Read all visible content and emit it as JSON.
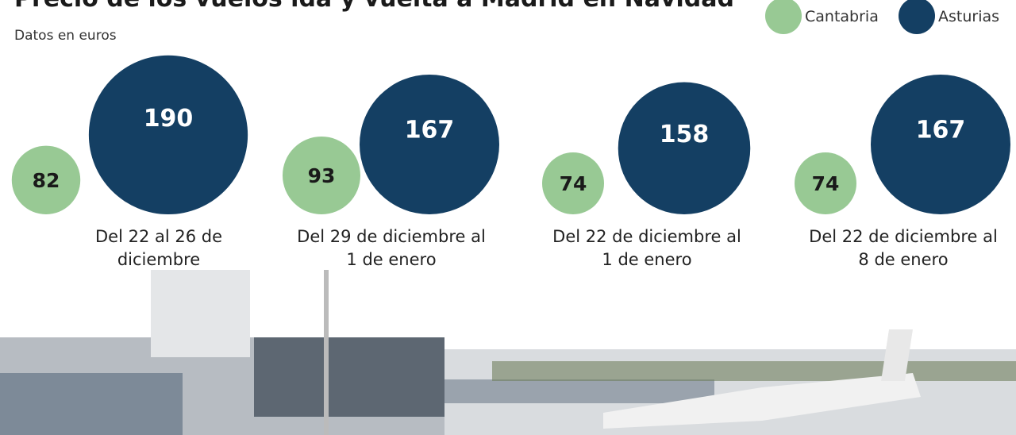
{
  "chart_data": {
    "type": "bubble",
    "title": "Precio de los vuelos ida y vuelta a Madrid en Navidad",
    "subtitle": "Datos en euros",
    "categories": [
      "Del 22 al 26 de diciembre",
      "Del 29 de diciembre al 1 de enero",
      "Del 22 de diciembre al 1 de enero",
      "Del 22 de diciembre al 8 de enero"
    ],
    "series": [
      {
        "name": "Cantabria",
        "color": "#98c994",
        "values": [
          82,
          93,
          74,
          74
        ]
      },
      {
        "name": "Asturias",
        "color": "#143f63",
        "values": [
          190,
          167,
          158,
          167
        ]
      }
    ]
  }
}
